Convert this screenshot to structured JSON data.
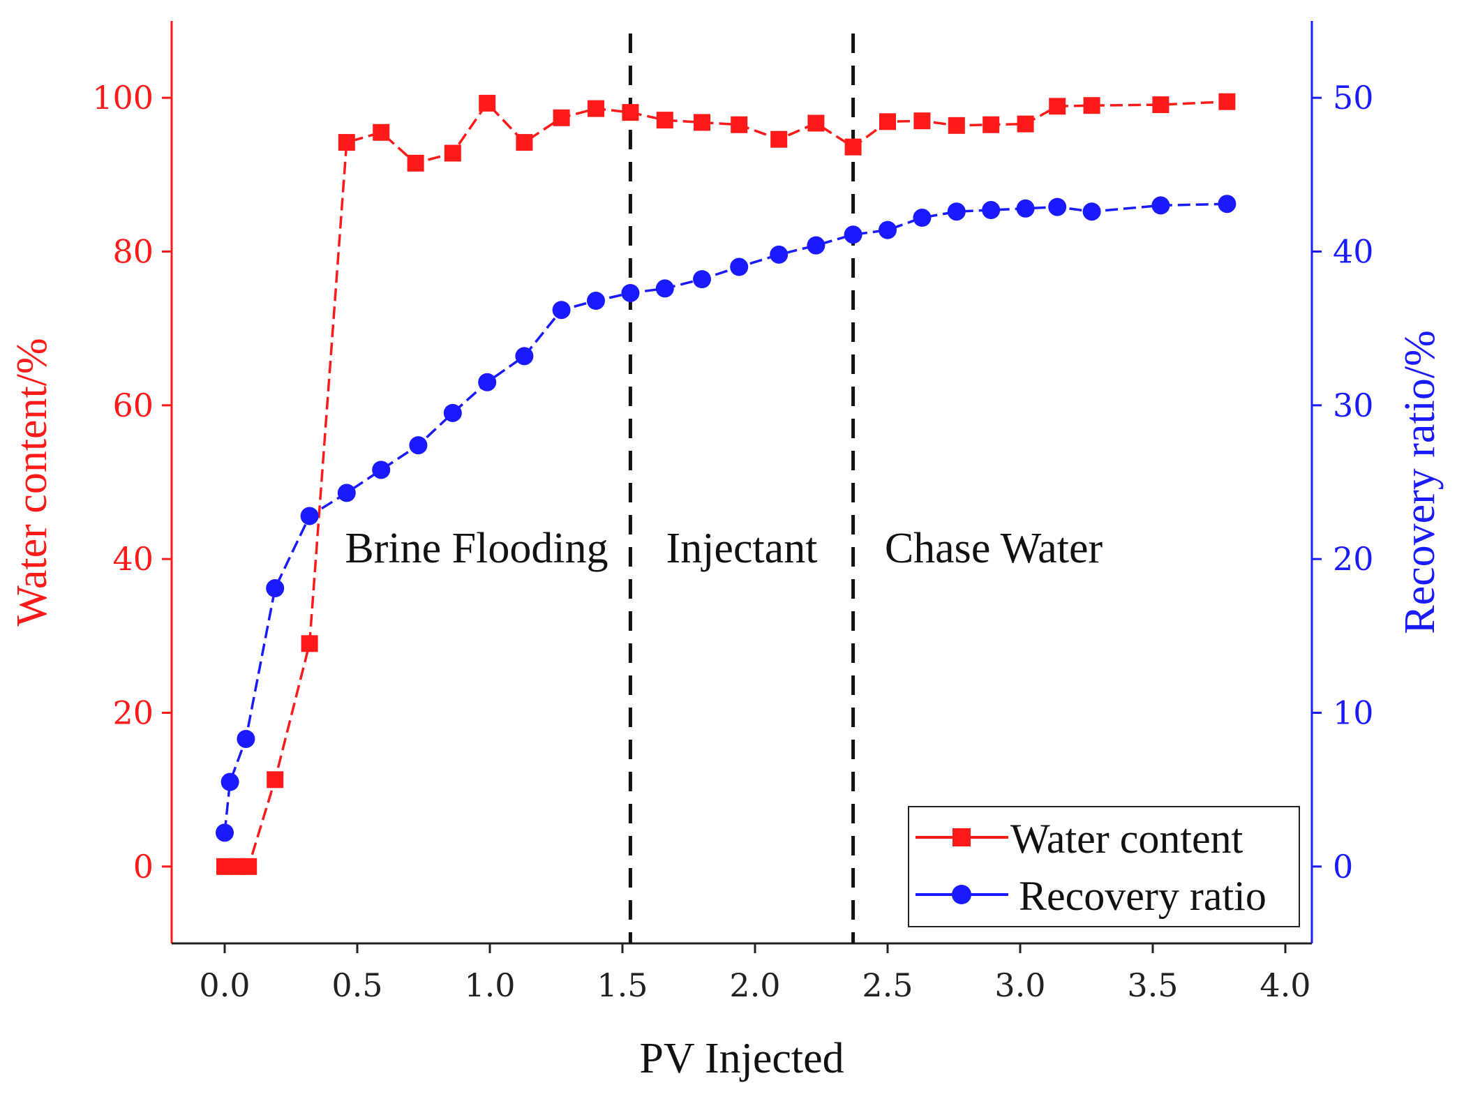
{
  "colors": {
    "water": "#ff1a1a",
    "recovery": "#1a1aff",
    "axis_bottom": "#222222",
    "divider": "#111111"
  },
  "chart_data": {
    "type": "line",
    "title": "",
    "xlabel": "PV Injected",
    "ylabel_left": "Water content/%",
    "ylabel_right": "Recovery ratio/%",
    "xlim": [
      -0.2,
      4.1
    ],
    "ylim_left": [
      -10,
      110
    ],
    "ylim_right": [
      -5,
      55
    ],
    "x_ticks": [
      0.0,
      0.5,
      1.0,
      1.5,
      2.0,
      2.5,
      3.0,
      3.5,
      4.0
    ],
    "x_tick_labels": [
      "0.0",
      "0.5",
      "1.0",
      "1.5",
      "2.0",
      "2.5",
      "3.0",
      "3.5",
      "4.0"
    ],
    "y_left_ticks": [
      0,
      20,
      40,
      60,
      80,
      100
    ],
    "y_left_tick_labels": [
      "0",
      "20",
      "40",
      "60",
      "80",
      "100"
    ],
    "y_right_ticks": [
      0,
      10,
      20,
      30,
      40,
      50
    ],
    "y_right_tick_labels": [
      "0",
      "10",
      "20",
      "30",
      "40",
      "50"
    ],
    "dividers": [
      1.53,
      2.37
    ],
    "phases": [
      {
        "label": "Brine Flooding",
        "x": 0.95
      },
      {
        "label": "Injectant",
        "x": 1.95
      },
      {
        "label": "Chase Water",
        "x": 2.9
      }
    ],
    "series": [
      {
        "name": "Water content",
        "axis": "left",
        "marker": "square",
        "x": [
          0.0,
          0.05,
          0.09,
          0.19,
          0.32,
          0.46,
          0.59,
          0.72,
          0.86,
          0.99,
          1.13,
          1.27,
          1.4,
          1.53,
          1.66,
          1.8,
          1.94,
          2.09,
          2.23,
          2.37,
          2.5,
          2.63,
          2.76,
          2.89,
          3.02,
          3.14,
          3.27,
          3.53,
          3.78
        ],
        "values": [
          0,
          0,
          0,
          11.3,
          29.0,
          94.2,
          95.5,
          91.5,
          92.8,
          99.3,
          94.2,
          97.4,
          98.6,
          98.1,
          97.1,
          96.8,
          96.5,
          94.6,
          96.7,
          93.6,
          96.9,
          97.0,
          96.4,
          96.5,
          96.6,
          98.9,
          99.0,
          99.1,
          99.5
        ]
      },
      {
        "name": "Recovery ratio",
        "axis": "right",
        "marker": "circle",
        "x": [
          0.0,
          0.02,
          0.08,
          0.19,
          0.32,
          0.46,
          0.59,
          0.73,
          0.86,
          0.99,
          1.13,
          1.27,
          1.4,
          1.53,
          1.66,
          1.8,
          1.94,
          2.09,
          2.23,
          2.37,
          2.5,
          2.63,
          2.76,
          2.89,
          3.02,
          3.14,
          3.27,
          3.53,
          3.78
        ],
        "values": [
          2.2,
          5.5,
          8.3,
          18.1,
          22.8,
          24.3,
          25.8,
          27.4,
          29.5,
          31.5,
          33.2,
          36.2,
          36.8,
          37.3,
          37.6,
          38.2,
          39.0,
          39.8,
          40.4,
          41.1,
          41.4,
          42.2,
          42.6,
          42.7,
          42.8,
          42.9,
          42.6,
          43.0,
          43.1
        ]
      }
    ],
    "legend": {
      "position": "bottom-right",
      "entries": [
        "Water content",
        "Recovery ratio"
      ]
    }
  }
}
